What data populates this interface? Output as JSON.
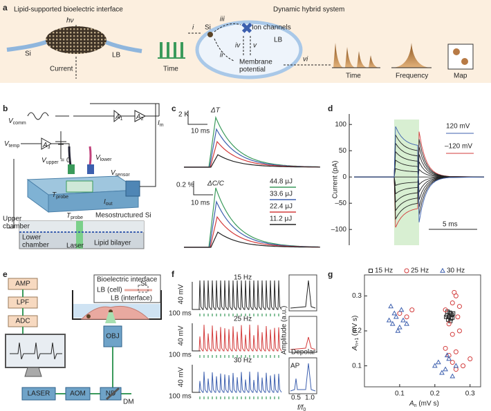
{
  "a": {
    "label": "a",
    "left_title": "Lipid-supported bioelectric interface",
    "light": "hν",
    "si": "Si",
    "lb": "LB",
    "current": "Current",
    "right_title": "Dynamic hybrid system",
    "steps": [
      "i",
      "ii",
      "iii",
      "iv",
      "v",
      "vi"
    ],
    "time": "Time",
    "cell_si": "Si",
    "ion_channels": "Ion channels",
    "cell_lb": "LB",
    "membrane_potential": [
      "Membrane",
      "potential"
    ],
    "outputs": [
      "Time",
      "Frequency",
      "Map"
    ]
  },
  "b": {
    "label": "b",
    "v_comm": {
      "main": "V",
      "sub": "comm"
    },
    "a1": {
      "main": "A",
      "sub": "1"
    },
    "a2": {
      "main": "A",
      "sub": "2"
    },
    "i_m": {
      "main": "I",
      "sub": "m"
    },
    "v_temp": {
      "main": "V",
      "sub": "temp"
    },
    "a3": {
      "main": "A",
      "sub": "3"
    },
    "v_upper": {
      "main": "V",
      "sub": "upper",
      "tail": " = 0"
    },
    "v_lower": {
      "main": "V",
      "sub": "lower"
    },
    "v_sensor": {
      "main": "V",
      "sub": "sensor"
    },
    "t_probe": {
      "main": "T",
      "sub": "probe"
    },
    "i_out": {
      "main": "I",
      "sub": "out"
    },
    "upper_chamber": [
      "Upper",
      "chamber"
    ],
    "t_probe_2": {
      "main": "T",
      "sub": "probe"
    },
    "meso_si": "Mesostructured Si",
    "lower_chamber": [
      "Lower",
      "chamber"
    ],
    "laser": "Laser",
    "lipid_bilayer": "Lipid bilayer"
  },
  "c": {
    "label": "c",
    "scale1": {
      "y": "2 K",
      "x": "10 ms"
    },
    "delta_t": "ΔT",
    "scale2": {
      "y": "0.2 %",
      "x": "10 ms"
    },
    "delta_c": "ΔC/C",
    "legend": [
      {
        "name": "44.8 μJ",
        "color": "#3a9a5b"
      },
      {
        "name": "33.6 μJ",
        "color": "#3c5fae"
      },
      {
        "name": "22.4 μJ",
        "color": "#d33b3b"
      },
      {
        "name": "11.2 μJ",
        "color": "#222222"
      }
    ]
  },
  "d": {
    "label": "d",
    "ylabel": "Current (pA)",
    "ylim": [
      -130,
      120
    ],
    "yticks": [
      100,
      50,
      0,
      {
        "value": -50,
        "label": "–50"
      },
      {
        "value": -100,
        "label": "–100"
      }
    ],
    "v_pos": "120 mV",
    "v_neg": "–120 mV",
    "scale_x": "5 ms"
  },
  "e": {
    "label": "e",
    "boxes": [
      "AMP",
      "LPF",
      "ADC"
    ],
    "inset_title": "Bioelectric interface",
    "lb_cell": "LB (cell)",
    "si": "Si",
    "lb_interface": "LB (interface)",
    "obj": "OBJ",
    "laser": "LASER",
    "aom": "AOM",
    "nd": "ND",
    "dm": "DM"
  },
  "f": {
    "label": "f",
    "rows": [
      {
        "freq": "15 Hz",
        "y": "40 mV",
        "x": "100 ms",
        "color": "#222222"
      },
      {
        "freq": "25 Hz",
        "y": "40 mV",
        "x": "100 ms",
        "color": "#d33b3b"
      },
      {
        "freq": "30 Hz",
        "y": "40 mV",
        "x": "100 ms",
        "color": "#3c5fae"
      }
    ],
    "amp_label": "Amplitude (a.u.)",
    "depolar": "Depolar-",
    "ap": "AP",
    "xticks": [
      "0.5",
      "1.0"
    ],
    "xlabel": {
      "main": "f",
      "tail": "/f",
      "sub": "0"
    }
  },
  "g": {
    "label": "g"
  },
  "chart_data": {
    "type": "scatter",
    "xlabel": {
      "main": "A",
      "sub": "n",
      "tail": " (mV s)"
    },
    "ylabel": {
      "main": "A",
      "sub": "n+1",
      "tail": " (mV s)"
    },
    "xlim": [
      0,
      0.33
    ],
    "ylim": [
      0.04,
      0.36
    ],
    "xticks": [
      0.1,
      0.2,
      0.3
    ],
    "yticks": [
      0.1,
      0.2,
      0.3
    ],
    "series": [
      {
        "name": "15 Hz",
        "color": "#222222",
        "marker": "square",
        "x": [
          0.235,
          0.24,
          0.245,
          0.25,
          0.238,
          0.242,
          0.248,
          0.232,
          0.244,
          0.252,
          0.236,
          0.246
        ],
        "values": [
          0.245,
          0.24,
          0.25,
          0.238,
          0.232,
          0.252,
          0.246,
          0.24,
          0.228,
          0.25,
          0.255,
          0.235
        ]
      },
      {
        "name": "25 Hz",
        "color": "#d33b3b",
        "marker": "circle",
        "x": [
          0.23,
          0.25,
          0.26,
          0.27,
          0.255,
          0.24,
          0.265,
          0.25,
          0.26,
          0.3,
          0.28,
          0.24,
          0.23,
          0.26,
          0.12,
          0.1,
          0.135,
          0.25,
          0.27
        ],
        "values": [
          0.26,
          0.28,
          0.3,
          0.27,
          0.31,
          0.22,
          0.24,
          0.11,
          0.09,
          0.12,
          0.1,
          0.13,
          0.15,
          0.14,
          0.24,
          0.25,
          0.26,
          0.19,
          0.2
        ]
      },
      {
        "name": "30 Hz",
        "color": "#3c5fae",
        "marker": "triangle",
        "x": [
          0.07,
          0.08,
          0.09,
          0.1,
          0.11,
          0.12,
          0.085,
          0.095,
          0.105,
          0.075,
          0.2,
          0.22,
          0.23,
          0.24,
          0.21,
          0.25,
          0.26,
          0.235
        ],
        "values": [
          0.23,
          0.22,
          0.24,
          0.21,
          0.23,
          0.22,
          0.25,
          0.2,
          0.26,
          0.27,
          0.1,
          0.08,
          0.09,
          0.12,
          0.11,
          0.07,
          0.1,
          0.13
        ]
      }
    ]
  }
}
